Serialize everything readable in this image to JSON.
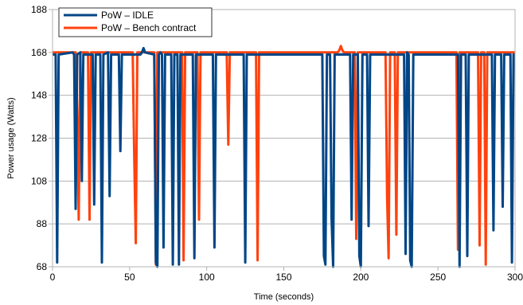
{
  "chart_data": {
    "type": "line",
    "title": "",
    "xlabel": "Time (seconds)",
    "ylabel": "Power usage (Watts)",
    "xlim": [
      0,
      300
    ],
    "ylim": [
      68,
      188
    ],
    "xticks": [
      0,
      50,
      100,
      150,
      200,
      250,
      300
    ],
    "yticks": [
      68,
      88,
      108,
      128,
      148,
      168,
      188
    ],
    "grid": "horizontal",
    "legend_position": "top-left",
    "series": [
      {
        "name": "PoW – IDLE",
        "color": "#004586",
        "points": [
          [
            0,
            167
          ],
          [
            2,
            167
          ],
          [
            3,
            70
          ],
          [
            4,
            167
          ],
          [
            13,
            168
          ],
          [
            14,
            167
          ],
          [
            15,
            95
          ],
          [
            16,
            167
          ],
          [
            18,
            168
          ],
          [
            19,
            108
          ],
          [
            20,
            167
          ],
          [
            26,
            167
          ],
          [
            27,
            97
          ],
          [
            28,
            167
          ],
          [
            31,
            167
          ],
          [
            32,
            70
          ],
          [
            33,
            167
          ],
          [
            36,
            168
          ],
          [
            37,
            101
          ],
          [
            38,
            167
          ],
          [
            43,
            167
          ],
          [
            44,
            122
          ],
          [
            45,
            167
          ],
          [
            57,
            167
          ],
          [
            58,
            168
          ],
          [
            59,
            170
          ],
          [
            60,
            168
          ],
          [
            66,
            167
          ],
          [
            67,
            70
          ],
          [
            68,
            68
          ],
          [
            69,
            167
          ],
          [
            70,
            168
          ],
          [
            71,
            167
          ],
          [
            72,
            77
          ],
          [
            73,
            167
          ],
          [
            77,
            167
          ],
          [
            78,
            69
          ],
          [
            79,
            167
          ],
          [
            81,
            167
          ],
          [
            82,
            69
          ],
          [
            83,
            167
          ],
          [
            91,
            167
          ],
          [
            92,
            72
          ],
          [
            93,
            167
          ],
          [
            104,
            167
          ],
          [
            105,
            77
          ],
          [
            106,
            167
          ],
          [
            124,
            167
          ],
          [
            125,
            70
          ],
          [
            126,
            167
          ],
          [
            175,
            167
          ],
          [
            176,
            73
          ],
          [
            177,
            69
          ],
          [
            178,
            167
          ],
          [
            180,
            167
          ],
          [
            181,
            91
          ],
          [
            182,
            68
          ],
          [
            183,
            167
          ],
          [
            193,
            167
          ],
          [
            194,
            90
          ],
          [
            195,
            167
          ],
          [
            198,
            167
          ],
          [
            199,
            73
          ],
          [
            200,
            68
          ],
          [
            201,
            167
          ],
          [
            204,
            167
          ],
          [
            205,
            87
          ],
          [
            206,
            167
          ],
          [
            228,
            167
          ],
          [
            229,
            74
          ],
          [
            230,
            168
          ],
          [
            231,
            167
          ],
          [
            232,
            71
          ],
          [
            233,
            68
          ],
          [
            234,
            167
          ],
          [
            263,
            167
          ],
          [
            264,
            68
          ],
          [
            265,
            167
          ],
          [
            268,
            167
          ],
          [
            269,
            73
          ],
          [
            270,
            167
          ],
          [
            285,
            167
          ],
          [
            286,
            85
          ],
          [
            287,
            167
          ],
          [
            291,
            167
          ],
          [
            292,
            96
          ],
          [
            293,
            167
          ],
          [
            297,
            167
          ],
          [
            298,
            70
          ],
          [
            299,
            167
          ],
          [
            300,
            167
          ]
        ]
      },
      {
        "name": "PoW – Bench contract",
        "color": "#ff420e",
        "points": [
          [
            0,
            168
          ],
          [
            15,
            168
          ],
          [
            16,
            140
          ],
          [
            17,
            90
          ],
          [
            18,
            168
          ],
          [
            23,
            168
          ],
          [
            24,
            90
          ],
          [
            25,
            168
          ],
          [
            52,
            168
          ],
          [
            53,
            120
          ],
          [
            54,
            79
          ],
          [
            55,
            168
          ],
          [
            66,
            168
          ],
          [
            67,
            69
          ],
          [
            68,
            168
          ],
          [
            84,
            168
          ],
          [
            85,
            71
          ],
          [
            86,
            168
          ],
          [
            94,
            168
          ],
          [
            95,
            90
          ],
          [
            96,
            168
          ],
          [
            113,
            168
          ],
          [
            114,
            125
          ],
          [
            115,
            168
          ],
          [
            132,
            168
          ],
          [
            133,
            71
          ],
          [
            134,
            168
          ],
          [
            185,
            168
          ],
          [
            186,
            169
          ],
          [
            187,
            171
          ],
          [
            188,
            169
          ],
          [
            189,
            168
          ],
          [
            196,
            168
          ],
          [
            197,
            81
          ],
          [
            198,
            168
          ],
          [
            216,
            168
          ],
          [
            217,
            100
          ],
          [
            218,
            72
          ],
          [
            219,
            168
          ],
          [
            222,
            168
          ],
          [
            223,
            83
          ],
          [
            224,
            168
          ],
          [
            235,
            168
          ],
          [
            236,
            168
          ],
          [
            262,
            168
          ],
          [
            263,
            76
          ],
          [
            264,
            168
          ],
          [
            276,
            168
          ],
          [
            277,
            78
          ],
          [
            278,
            168
          ],
          [
            280,
            168
          ],
          [
            281,
            69
          ],
          [
            282,
            168
          ],
          [
            300,
            168
          ]
        ]
      }
    ]
  }
}
